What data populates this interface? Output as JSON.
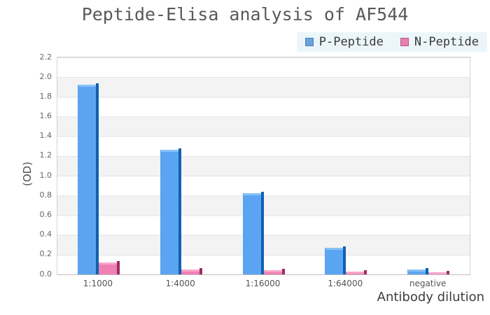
{
  "page": {
    "title": "Peptide-Elisa analysis of AF544",
    "xlabel": "Antibody dilution",
    "ylabel": "(OD)"
  },
  "legend": {
    "background": "#ecf6fa",
    "items": [
      {
        "label": "P-Peptide",
        "color": "#68a2dc",
        "border": "#4d82ae"
      },
      {
        "label": "N-Peptide",
        "color": "#e77fb0",
        "border": "#b05c87"
      }
    ]
  },
  "chart_data": {
    "type": "bar",
    "title": "Peptide-Elisa analysis of AF544",
    "categories": [
      "1:1000",
      "1:4000",
      "1:16000",
      "1:64000",
      "negative"
    ],
    "series": [
      {
        "name": "P-Peptide",
        "values": [
          1.92,
          1.26,
          0.82,
          0.27,
          0.05
        ],
        "fill": "#5ba4f1",
        "top_highlight": "#86c1f8",
        "side_shade": "#1160b0"
      },
      {
        "name": "N-Peptide",
        "values": [
          0.12,
          0.05,
          0.04,
          0.03,
          0.02
        ],
        "fill": "#f07fb4",
        "top_highlight": "#f8a6ca",
        "side_shade": "#9e2c66"
      }
    ],
    "xlabel": "Antibody dilution",
    "ylabel": "(OD)",
    "ylim": [
      0,
      2.2
    ],
    "ytick_step": 0.2,
    "y_ticks": [
      "0.0",
      "0.2",
      "0.4",
      "0.6",
      "0.8",
      "1.0",
      "1.2",
      "1.4",
      "1.6",
      "1.8",
      "2.0",
      "2.2"
    ],
    "grid": true,
    "band_stripes": true,
    "legend_position": "top-right"
  }
}
